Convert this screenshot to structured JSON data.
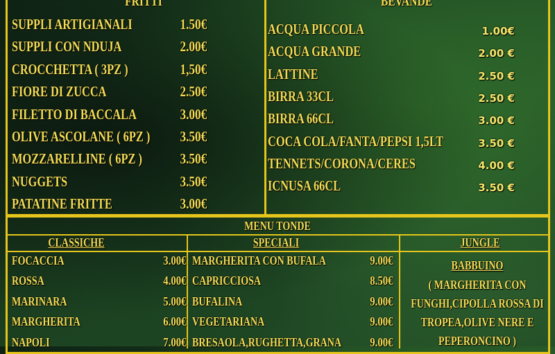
{
  "colors": {
    "border": "#e6c51c",
    "text": "#f2dc55"
  },
  "fritti": {
    "title": "FRITTI",
    "items": [
      {
        "name": "SUPPLI ARTIGIANALI",
        "price": "1.50€"
      },
      {
        "name": "SUPPLI CON NDUJA",
        "price": "2.00€"
      },
      {
        "name": "CROCCHETTA ( 3PZ )",
        "price": "1,50€"
      },
      {
        "name": "FIORE DI ZUCCA",
        "price": "2.50€"
      },
      {
        "name": "FILETTO DI BACCALA",
        "price": "3.00€"
      },
      {
        "name": "OLIVE ASCOLANE ( 6PZ )",
        "price": "3.50€"
      },
      {
        "name": "MOZZARELLINE ( 6PZ )",
        "price": "3.50€"
      },
      {
        "name": "NUGGETS",
        "price": "3.50€"
      },
      {
        "name": "PATATINE FRITTE",
        "price": "3.00€"
      }
    ]
  },
  "bevande": {
    "title": "BEVANDE",
    "items": [
      {
        "name": "ACQUA PICCOLA",
        "price": "1.00€"
      },
      {
        "name": "ACQUA GRANDE",
        "price": "2.00 €"
      },
      {
        "name": "LATTINE",
        "price": "2.50 €"
      },
      {
        "name": "BIRRA 33CL",
        "price": "2.50 €"
      },
      {
        "name": "BIRRA 66CL",
        "price": "3.00 €"
      },
      {
        "name": "COCA COLA/FANTA/PEPSI 1,5LT",
        "price": "3.50 €"
      },
      {
        "name": "TENNETS/CORONA/CERES",
        "price": "4.00 €"
      },
      {
        "name": "ICNUSA 66CL",
        "price": "3.50 €"
      }
    ]
  },
  "menu_tonde": {
    "title": "MENU TONDE",
    "classiche": {
      "title": "CLASSICHE",
      "items": [
        {
          "name": "FOCACCIA",
          "price": "3.00€"
        },
        {
          "name": "ROSSA",
          "price": "4.00€"
        },
        {
          "name": "MARINARA",
          "price": "5.00€"
        },
        {
          "name": "MARGHERITA",
          "price": "6.00€"
        },
        {
          "name": "NAPOLI",
          "price": "7.00€"
        }
      ]
    },
    "speciali": {
      "title": "SPECIALI",
      "items": [
        {
          "name": "MARGHERITA CON BUFALA",
          "price": "9.00€"
        },
        {
          "name": "CAPRICCIOSA",
          "price": "8.50€"
        },
        {
          "name": "BUFALINA",
          "price": "9.00€"
        },
        {
          "name": "VEGETARIANA",
          "price": "9.00€"
        },
        {
          "name": "BRESAOLA,RUGHETTA,GRANA",
          "price": "9.00€"
        }
      ]
    },
    "jungle": {
      "title": "JUNGLE",
      "item_name": "BABBUINO",
      "description_lines": [
        "( MARGHERITA CON",
        "FUNGHI,CIPOLLA ROSSA DI",
        "TROPEA,OLIVE NERE E",
        "PEPERONCINO )"
      ]
    }
  }
}
